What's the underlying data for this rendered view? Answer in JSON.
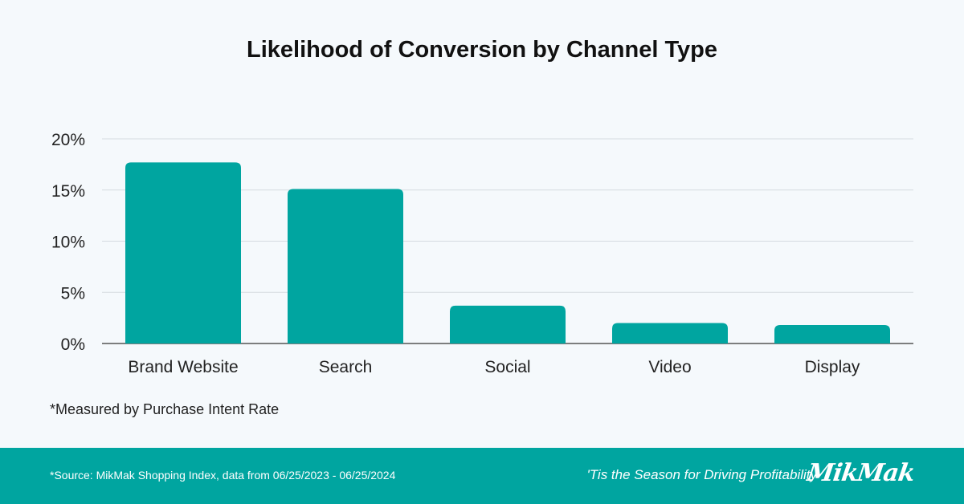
{
  "chart_data": {
    "type": "bar",
    "title": "Likelihood of Conversion by Channel Type",
    "categories": [
      "Brand Website",
      "Search",
      "Social",
      "Video",
      "Display"
    ],
    "values": [
      17.7,
      15.1,
      3.7,
      2.0,
      1.8
    ],
    "ylim": [
      0,
      20
    ],
    "yticks": [
      0,
      5,
      10,
      15,
      20
    ],
    "ytick_labels": [
      "0%",
      "5%",
      "10%",
      "15%",
      "20%"
    ],
    "xlabel": "",
    "ylabel": "",
    "grid": true,
    "bar_color": "#00a5a0"
  },
  "note": "*Measured by Purchase Intent Rate",
  "footer": {
    "source": "*Source: MikMak Shopping Index, data from 06/25/2023 - 06/25/2024",
    "tagline": "'Tis the Season for Driving Profitability",
    "logo": "MikMak",
    "bg_color": "#00a5a0"
  }
}
